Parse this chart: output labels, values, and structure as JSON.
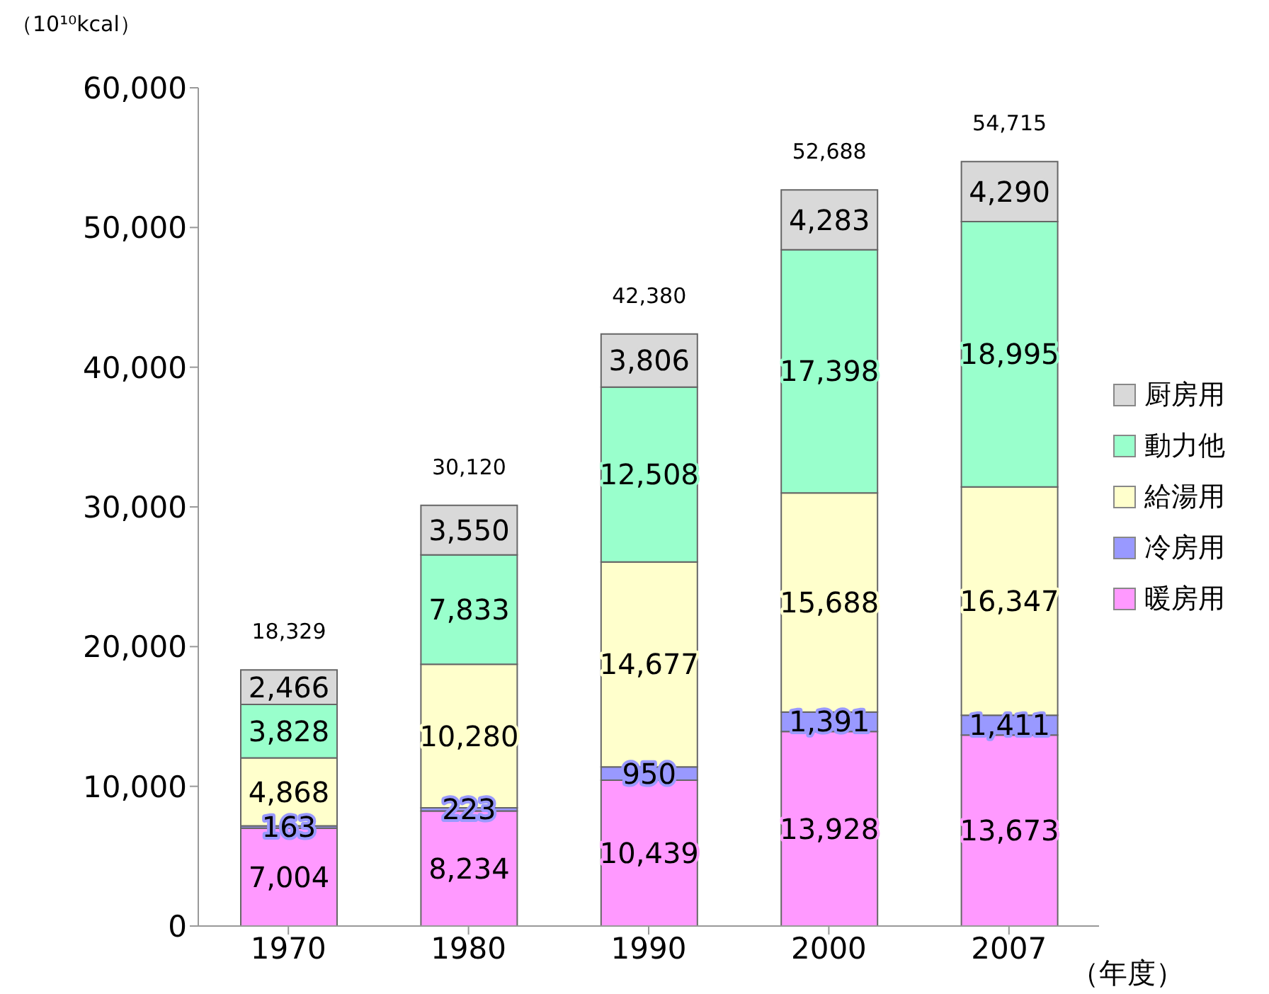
{
  "chart_data": {
    "type": "bar",
    "stacked": true,
    "ylabel": "（10¹⁰kcal）",
    "xlabel": "（年度）",
    "categories": [
      "1970",
      "1980",
      "1990",
      "2000",
      "2007"
    ],
    "series": [
      {
        "name": "暖房用",
        "color": "#ff99ff",
        "values": [
          7004,
          8234,
          10439,
          13928,
          13673
        ],
        "value_labels": [
          "7,004",
          "8,234",
          "10,439",
          "13,928",
          "13,673"
        ]
      },
      {
        "name": "冷房用",
        "color": "#9999ff",
        "values": [
          163,
          223,
          950,
          1391,
          1411
        ],
        "value_labels": [
          "163",
          "223",
          "950",
          "1,391",
          "1,411"
        ]
      },
      {
        "name": "給湯用",
        "color": "#ffffcc",
        "values": [
          4868,
          10280,
          14677,
          15688,
          16347
        ],
        "value_labels": [
          "4,868",
          "10,280",
          "14,677",
          "15,688",
          "16,347"
        ]
      },
      {
        "name": "動力他",
        "color": "#99ffcc",
        "values": [
          3828,
          7833,
          12508,
          17398,
          18995
        ],
        "value_labels": [
          "3,828",
          "7,833",
          "12,508",
          "17,398",
          "18,995"
        ]
      },
      {
        "name": "厨房用",
        "color": "#d9d9d9",
        "values": [
          2466,
          3550,
          3806,
          4283,
          4290
        ],
        "value_labels": [
          "2,466",
          "3,550",
          "3,806",
          "4,283",
          "4,290"
        ]
      }
    ],
    "totals": [
      "18,329",
      "30,120",
      "42,380",
      "52,688",
      "54,715"
    ],
    "ylim": [
      0,
      60000
    ],
    "yticks": [
      {
        "value": 0,
        "label": "0"
      },
      {
        "value": 10000,
        "label": "10,000"
      },
      {
        "value": 20000,
        "label": "20,000"
      },
      {
        "value": 30000,
        "label": "30,000"
      },
      {
        "value": 40000,
        "label": "40,000"
      },
      {
        "value": 50000,
        "label": "50,000"
      },
      {
        "value": 60000,
        "label": "60,000"
      }
    ],
    "grid": false,
    "legend": "right"
  }
}
